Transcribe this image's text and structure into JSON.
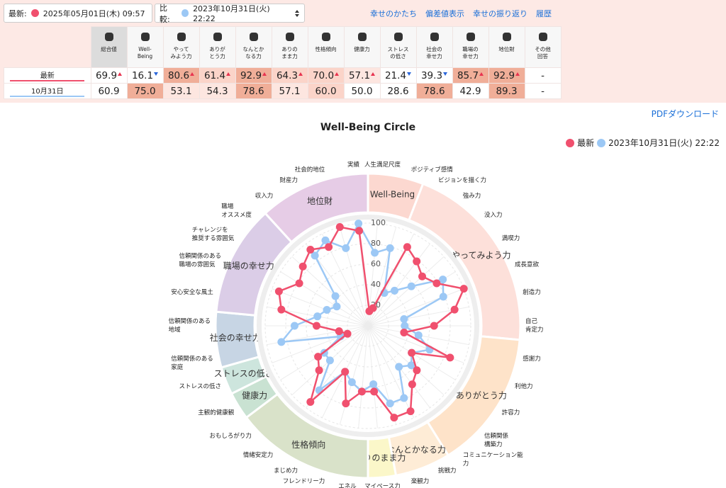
{
  "header": {
    "latest_label": "最新:",
    "latest_date": "2025年05月01日(木) 09:57",
    "compare_label": "比較:",
    "compare_date": "2023年10月31日(火) 22:22",
    "links": [
      "幸せのかたち",
      "偏差値表示",
      "幸せの振り返り",
      "履歴"
    ]
  },
  "table": {
    "columns": [
      "総合値",
      "Well-\nBeing",
      "やって\nみよう力",
      "ありが\nとう力",
      "なんとか\nなる力",
      "ありの\nまま力",
      "性格傾向",
      "健康力",
      "ストレス\nの低さ",
      "社会の\n幸せ力",
      "職場の\n幸せ力",
      "地位財",
      "その他\n回答"
    ],
    "rows": [
      {
        "label": "最新",
        "color": "#f0506e",
        "cells": [
          "69.9",
          "16.1",
          "80.6",
          "61.4",
          "92.9",
          "64.3",
          "70.0",
          "57.1",
          "21.4",
          "39.3",
          "85.7",
          "92.9",
          "-"
        ],
        "trends": [
          "up",
          "down",
          "up",
          "up",
          "up",
          "up",
          "up",
          "up",
          "down",
          "down",
          "up",
          "up",
          null
        ]
      },
      {
        "label": "10月31日",
        "color": "#9cc8f5",
        "cells": [
          "60.9",
          "75.0",
          "53.1",
          "54.3",
          "78.6",
          "57.1",
          "60.0",
          "50.0",
          "28.6",
          "78.6",
          "42.9",
          "89.3",
          "-"
        ]
      }
    ]
  },
  "pdf_link": "PDFダウンロード",
  "chart_data": {
    "type": "radar",
    "title": "Well-Being Circle",
    "groups": [
      {
        "name": "Well-Being",
        "color": "#fcd8d0",
        "items": [
          "人生満足尺度",
          "ポジティブ感情"
        ]
      },
      {
        "name": "やってみよう力",
        "color": "#fde0da",
        "items": [
          "ビジョンを描く力",
          "強み力",
          "没入力",
          "満喫力",
          "成長意欲",
          "創造力",
          "自己\n肯定力"
        ]
      },
      {
        "name": "ありがとう力",
        "color": "#fee3c9",
        "items": [
          "感謝力",
          "利他力",
          "許容力",
          "信頼関係\n構築力",
          "コミュニケーション能\n力"
        ]
      },
      {
        "name": "なんとかなる力",
        "color": "#feecd6",
        "items": [
          "挑戦力",
          "楽観力"
        ]
      },
      {
        "name": "ありのまま力",
        "color": "#fbf7c9",
        "items": [
          "マイペース力"
        ]
      },
      {
        "name": "性格傾向",
        "color": "#d9e2c9",
        "items": [
          "エネル\nギッシュ力",
          "フレンドリー力",
          "まじめ力",
          "情緒安定力",
          "おもしろがり力"
        ]
      },
      {
        "name": "健康力",
        "color": "#c9e2d2",
        "items": [
          "主観的健康観"
        ]
      },
      {
        "name": "ストレスの低さ",
        "color": "#cde5dd",
        "items": [
          "ストレスの低さ"
        ]
      },
      {
        "name": "社会の幸せ力",
        "color": "#c7d5e4",
        "items": [
          "信頼関係のある\n家庭",
          "信頼関係のある\n地域"
        ]
      },
      {
        "name": "職場の幸せ力",
        "color": "#dbcde7",
        "items": [
          "安心安全な風土",
          "信頼関係のある\n職場の雰囲気",
          "チャレンジを\n推奨する雰囲気",
          "職場\nオススメ度"
        ]
      },
      {
        "name": "地位財",
        "color": "#e6cce6",
        "items": [
          "収入力",
          "財産力",
          "社会的地位",
          "実績"
        ]
      }
    ],
    "series": [
      {
        "name": "最新",
        "color": "#f0506e",
        "values": [
          14.3,
          17.9,
          85.7,
          78.6,
          71.4,
          78.6,
          100,
          85.7,
          64.3,
          35.7,
          85.7,
          50,
          64.3,
          71.4,
          92.9,
          92.9,
          64.3,
          64.3,
          78.6,
          50,
          92.9,
          64.3,
          57.1,
          21.4,
          28.6,
          50,
          85.7,
          92.9,
          78.6,
          85.7,
          92.9,
          85.7,
          100,
          92.9
        ]
      },
      {
        "name": "2023年10月31日(火) 22:22",
        "color": "#9cc8f5",
        "values": [
          71.4,
          78.6,
          35.7,
          42.9,
          57.1,
          85.7,
          78.6,
          35.7,
          35.7,
          50,
          64.3,
          50,
          57.1,
          50,
          78.6,
          78.6,
          57.1,
          64.3,
          57.1,
          50,
          78.6,
          50,
          50,
          28.6,
          85.7,
          71.4,
          50,
          42.9,
          35.7,
          42.9,
          85.7,
          92.9,
          78.6,
          100
        ]
      }
    ],
    "rlim": [
      0,
      100
    ],
    "rticks": [
      20,
      40,
      60,
      80,
      100
    ],
    "grid": true
  }
}
